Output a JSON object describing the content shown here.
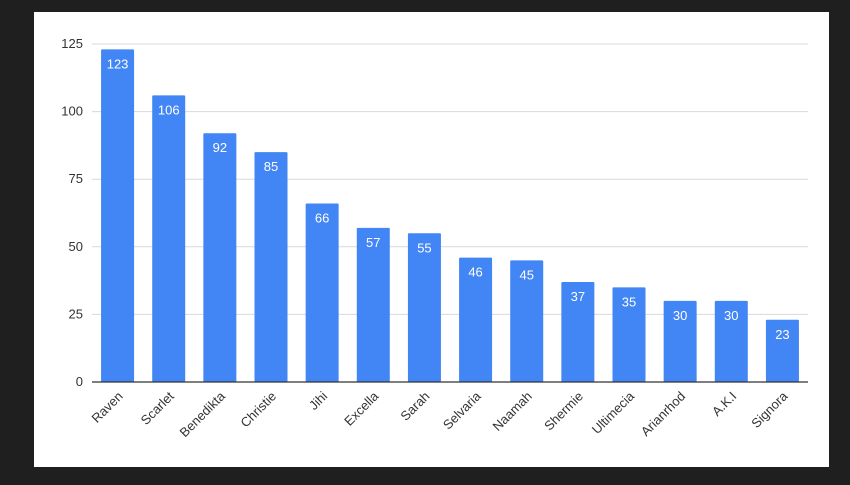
{
  "chart_data": {
    "type": "bar",
    "categories": [
      "Raven",
      "Scarlet",
      "Benedikta",
      "Christie",
      "Jihi",
      "Excella",
      "Sarah",
      "Selvaria",
      "Naamah",
      "Shermie",
      "Ultimecia",
      "Arianrhod",
      "A.K.I",
      "Signora"
    ],
    "values": [
      123,
      106,
      92,
      85,
      66,
      57,
      55,
      46,
      45,
      37,
      35,
      30,
      30,
      23
    ],
    "title": "",
    "xlabel": "",
    "ylabel": "",
    "ylim": [
      0,
      125
    ],
    "yticks": [
      0,
      25,
      50,
      75,
      100,
      125
    ],
    "grid": true,
    "data_labels": true,
    "colors": {
      "bar": "#4285f4",
      "grid": "#d9d9d9",
      "axis": "#333333",
      "background": "#ffffff",
      "frame": "#1f1f1f"
    }
  }
}
